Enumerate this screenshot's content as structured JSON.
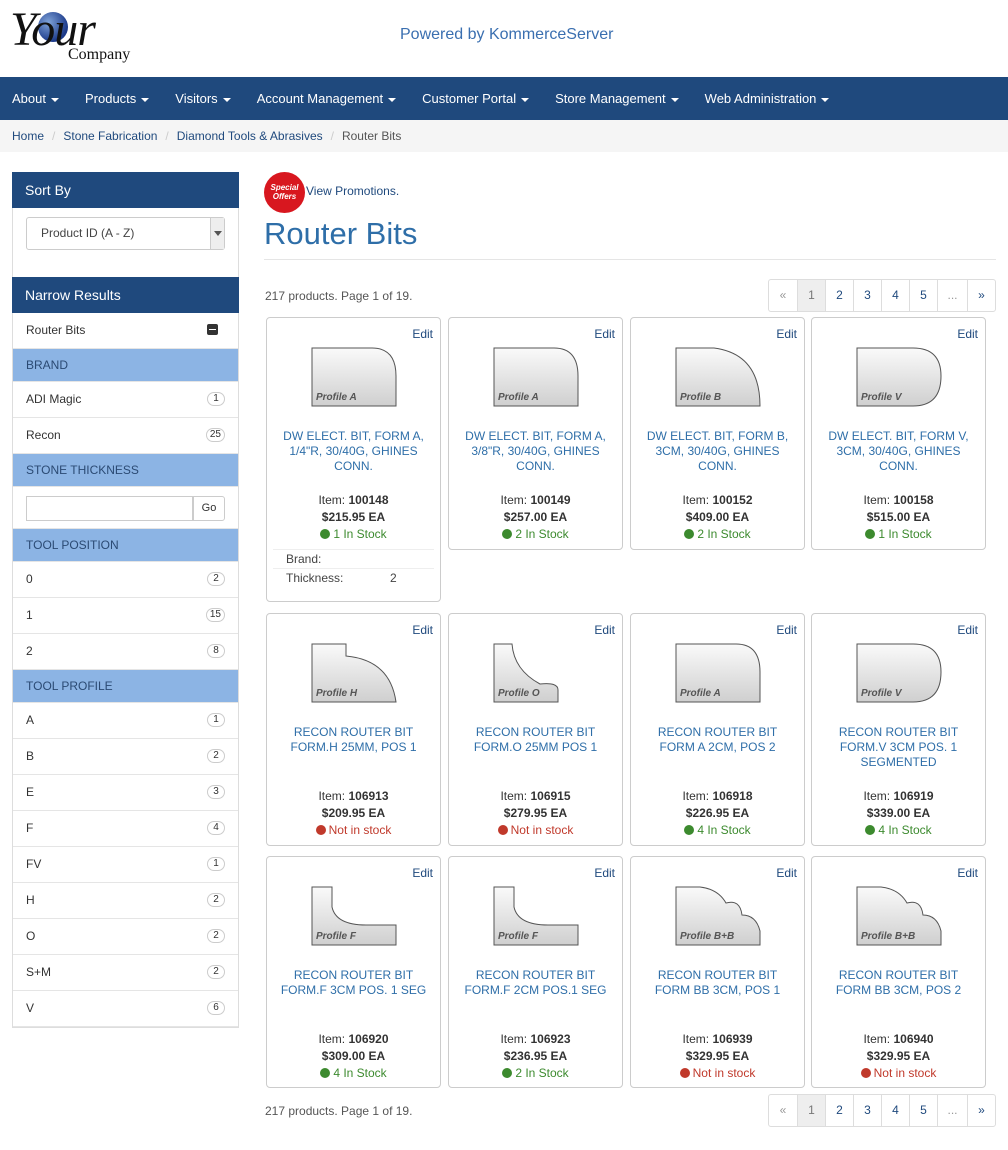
{
  "header": {
    "logo_main": "Your",
    "logo_sub": "Company",
    "powered": "Powered by KommerceServer"
  },
  "nav": [
    "About",
    "Products",
    "Visitors",
    "Account Management",
    "Customer Portal",
    "Store Management",
    "Web Administration"
  ],
  "breadcrumb": [
    "Home",
    "Stone Fabrication",
    "Diamond Tools & Abrasives",
    "Router Bits"
  ],
  "sort": {
    "title": "Sort By",
    "selected": "Product ID (A - Z)"
  },
  "narrow": {
    "title": "Narrow Results",
    "selected": "Router Bits",
    "brand_title": "BRAND",
    "brands": [
      {
        "label": "ADI Magic",
        "count": "1"
      },
      {
        "label": "Recon",
        "count": "25"
      }
    ],
    "thickness_title": "STONE THICKNESS",
    "go": "Go",
    "position_title": "TOOL POSITION",
    "positions": [
      {
        "label": "0",
        "count": "2"
      },
      {
        "label": "1",
        "count": "15"
      },
      {
        "label": "2",
        "count": "8"
      }
    ],
    "profile_title": "TOOL PROFILE",
    "profiles": [
      {
        "label": "A",
        "count": "1"
      },
      {
        "label": "B",
        "count": "2"
      },
      {
        "label": "E",
        "count": "3"
      },
      {
        "label": "F",
        "count": "4"
      },
      {
        "label": "FV",
        "count": "1"
      },
      {
        "label": "H",
        "count": "2"
      },
      {
        "label": "O",
        "count": "2"
      },
      {
        "label": "S+M",
        "count": "2"
      },
      {
        "label": "V",
        "count": "6"
      }
    ]
  },
  "promo": {
    "seal": "Special Offers",
    "link": "View Promotions."
  },
  "page_title": "Router Bits",
  "count_text": "217 products. Page 1 of 19.",
  "pager": [
    "«",
    "1",
    "2",
    "3",
    "4",
    "5",
    "...",
    "»"
  ],
  "edit_label": "Edit",
  "item_label": "Item:",
  "products": [
    {
      "profile": "Profile A",
      "name": "DW ELECT. BIT, FORM A, 1/4\"R, 30/40G, GHINES CONN.",
      "item": "100148",
      "price": "$215.95 EA",
      "stock": "1 In Stock",
      "in": true
    },
    {
      "profile": "Profile A",
      "name": "DW ELECT. BIT, FORM A, 3/8\"R, 30/40G, GHINES CONN.",
      "item": "100149",
      "price": "$257.00 EA",
      "stock": "2 In Stock",
      "in": true
    },
    {
      "profile": "Profile B",
      "name": "DW ELECT. BIT, FORM B, 3CM, 30/40G, GHINES CONN.",
      "item": "100152",
      "price": "$409.00 EA",
      "stock": "2 In Stock",
      "in": true
    },
    {
      "profile": "Profile V",
      "name": "DW ELECT. BIT, FORM V, 3CM, 30/40G, GHINES CONN.",
      "item": "100158",
      "price": "$515.00 EA",
      "stock": "1 In Stock",
      "in": true
    },
    {
      "profile": "Profile H",
      "name": "RECON ROUTER BIT FORM.H 25MM, POS 1",
      "item": "106913",
      "price": "$209.95 EA",
      "stock": "Not in stock",
      "in": false
    },
    {
      "profile": "Profile O",
      "name": "RECON ROUTER BIT FORM.O 25MM POS 1",
      "item": "106915",
      "price": "$279.95 EA",
      "stock": "Not in stock",
      "in": false
    },
    {
      "profile": "Profile A",
      "name": "RECON ROUTER BIT FORM A 2CM, POS 2",
      "item": "106918",
      "price": "$226.95 EA",
      "stock": "4 In Stock",
      "in": true
    },
    {
      "profile": "Profile V",
      "name": "RECON ROUTER BIT FORM.V 3CM POS. 1 SEGMENTED",
      "item": "106919",
      "price": "$339.00 EA",
      "stock": "4 In Stock",
      "in": true
    },
    {
      "profile": "Profile F",
      "name": "RECON ROUTER BIT FORM.F 3CM POS. 1 SEG",
      "item": "106920",
      "price": "$309.00 EA",
      "stock": "4 In Stock",
      "in": true
    },
    {
      "profile": "Profile F",
      "name": "RECON ROUTER BIT FORM.F 2CM POS.1 SEG",
      "item": "106923",
      "price": "$236.95 EA",
      "stock": "2 In Stock",
      "in": true
    },
    {
      "profile": "Profile B+B",
      "name": "RECON ROUTER BIT FORM BB 3CM, POS 1",
      "item": "106939",
      "price": "$329.95 EA",
      "stock": "Not in stock",
      "in": false
    },
    {
      "profile": "Profile B+B",
      "name": "RECON ROUTER BIT FORM BB 3CM, POS 2",
      "item": "106940",
      "price": "$329.95 EA",
      "stock": "Not in stock",
      "in": false
    }
  ],
  "first_card_attrs": [
    {
      "label": "Brand:",
      "value": ""
    },
    {
      "label": "Thickness:",
      "value": "2"
    }
  ]
}
